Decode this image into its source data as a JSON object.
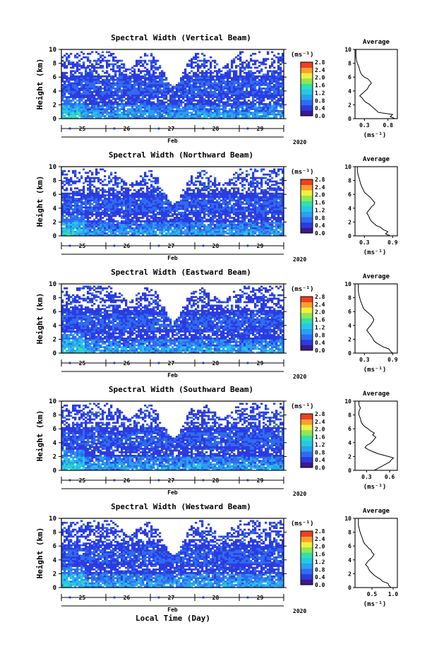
{
  "page": {
    "xlabel": "Local Time (Day)"
  },
  "panels": [
    {
      "title": "Spectral Width (Vertical Beam)",
      "avg_title": "Average",
      "avg_xticks": [
        "0.3",
        "0.8"
      ],
      "avg_xrange": [
        0.1,
        1.0
      ],
      "avg_profile": [
        [
          0,
          0.95
        ],
        [
          0.3,
          0.85
        ],
        [
          0.6,
          0.9
        ],
        [
          0.9,
          0.6
        ],
        [
          1.2,
          0.55
        ],
        [
          1.5,
          0.5
        ],
        [
          1.8,
          0.45
        ],
        [
          2.1,
          0.4
        ],
        [
          2.4,
          0.32
        ],
        [
          2.7,
          0.28
        ],
        [
          3,
          0.25
        ],
        [
          3.3,
          0.2
        ],
        [
          3.6,
          0.25
        ],
        [
          3.9,
          0.3
        ],
        [
          4.2,
          0.35
        ],
        [
          4.5,
          0.38
        ],
        [
          4.8,
          0.4
        ],
        [
          5.1,
          0.45
        ],
        [
          5.4,
          0.42
        ],
        [
          5.7,
          0.38
        ],
        [
          6,
          0.3
        ],
        [
          6.3,
          0.25
        ],
        [
          6.6,
          0.22
        ],
        [
          7,
          0.2
        ],
        [
          7.5,
          0.18
        ],
        [
          8,
          0.15
        ],
        [
          8.5,
          0.13
        ],
        [
          9,
          0.12
        ],
        [
          9.5,
          0.12
        ],
        [
          10,
          0.12
        ]
      ]
    },
    {
      "title": "Spectral Width (Northward Beam)",
      "avg_title": "Average",
      "avg_xticks": [
        "0.3",
        "0.9"
      ],
      "avg_xrange": [
        0.1,
        1.0
      ],
      "avg_profile": [
        [
          0,
          0.85
        ],
        [
          0.3,
          0.75
        ],
        [
          0.6,
          0.8
        ],
        [
          0.9,
          0.7
        ],
        [
          1.2,
          0.65
        ],
        [
          1.5,
          0.55
        ],
        [
          1.8,
          0.5
        ],
        [
          2.1,
          0.45
        ],
        [
          2.4,
          0.42
        ],
        [
          2.7,
          0.4
        ],
        [
          3,
          0.38
        ],
        [
          3.3,
          0.35
        ],
        [
          3.6,
          0.38
        ],
        [
          3.9,
          0.42
        ],
        [
          4.2,
          0.45
        ],
        [
          4.5,
          0.5
        ],
        [
          4.8,
          0.52
        ],
        [
          5.1,
          0.48
        ],
        [
          5.4,
          0.45
        ],
        [
          5.7,
          0.4
        ],
        [
          6,
          0.35
        ],
        [
          6.3,
          0.3
        ],
        [
          6.6,
          0.28
        ],
        [
          7,
          0.25
        ],
        [
          7.5,
          0.22
        ],
        [
          8,
          0.2
        ],
        [
          8.5,
          0.18
        ],
        [
          9,
          0.16
        ],
        [
          9.5,
          0.15
        ],
        [
          10,
          0.15
        ]
      ]
    },
    {
      "title": "Spectral Width (Eastward Beam)",
      "avg_title": "Average",
      "avg_xticks": [
        "0.3",
        "0.9"
      ],
      "avg_xrange": [
        0.1,
        1.0
      ],
      "avg_profile": [
        [
          0,
          0.9
        ],
        [
          0.3,
          0.85
        ],
        [
          0.6,
          0.82
        ],
        [
          0.9,
          0.7
        ],
        [
          1.2,
          0.62
        ],
        [
          1.5,
          0.55
        ],
        [
          1.8,
          0.5
        ],
        [
          2.1,
          0.48
        ],
        [
          2.4,
          0.45
        ],
        [
          2.7,
          0.42
        ],
        [
          3,
          0.38
        ],
        [
          3.3,
          0.35
        ],
        [
          3.6,
          0.38
        ],
        [
          3.9,
          0.42
        ],
        [
          4.2,
          0.45
        ],
        [
          4.5,
          0.48
        ],
        [
          4.8,
          0.5
        ],
        [
          5.1,
          0.48
        ],
        [
          5.4,
          0.45
        ],
        [
          5.7,
          0.4
        ],
        [
          6,
          0.35
        ],
        [
          6.3,
          0.3
        ],
        [
          6.6,
          0.27
        ],
        [
          7,
          0.25
        ],
        [
          7.5,
          0.22
        ],
        [
          8,
          0.2
        ],
        [
          8.5,
          0.18
        ],
        [
          9,
          0.17
        ],
        [
          9.5,
          0.17
        ],
        [
          10,
          0.17
        ]
      ]
    },
    {
      "title": "Spectral Width (Southward Beam)",
      "avg_title": "Average",
      "avg_xticks": [
        "0.3",
        "0.6"
      ],
      "avg_xrange": [
        0.15,
        0.7
      ],
      "avg_profile": [
        [
          0,
          0.4
        ],
        [
          0.3,
          0.45
        ],
        [
          0.6,
          0.5
        ],
        [
          0.9,
          0.55
        ],
        [
          1.2,
          0.6
        ],
        [
          1.5,
          0.62
        ],
        [
          1.8,
          0.65
        ],
        [
          2.1,
          0.55
        ],
        [
          2.4,
          0.45
        ],
        [
          2.7,
          0.38
        ],
        [
          3,
          0.32
        ],
        [
          3.3,
          0.28
        ],
        [
          3.6,
          0.3
        ],
        [
          3.9,
          0.35
        ],
        [
          4.2,
          0.38
        ],
        [
          4.5,
          0.4
        ],
        [
          4.8,
          0.42
        ],
        [
          5.1,
          0.38
        ],
        [
          5.4,
          0.4
        ],
        [
          5.7,
          0.35
        ],
        [
          6,
          0.32
        ],
        [
          6.3,
          0.28
        ],
        [
          6.6,
          0.25
        ],
        [
          7,
          0.23
        ],
        [
          7.5,
          0.22
        ],
        [
          8,
          0.2
        ],
        [
          8.5,
          0.2
        ],
        [
          9,
          0.22
        ],
        [
          9.5,
          0.2
        ],
        [
          10,
          0.2
        ]
      ]
    },
    {
      "title": "Spectral Width (Westward Beam)",
      "avg_title": "Average",
      "avg_xticks": [
        "0.5",
        "1.0"
      ],
      "avg_xrange": [
        0.1,
        1.1
      ],
      "avg_profile": [
        [
          0,
          0.95
        ],
        [
          0.3,
          0.9
        ],
        [
          0.6,
          0.88
        ],
        [
          0.9,
          0.75
        ],
        [
          1.2,
          0.7
        ],
        [
          1.5,
          0.62
        ],
        [
          1.8,
          0.55
        ],
        [
          2.1,
          0.5
        ],
        [
          2.4,
          0.45
        ],
        [
          2.7,
          0.42
        ],
        [
          3,
          0.4
        ],
        [
          3.3,
          0.35
        ],
        [
          3.6,
          0.38
        ],
        [
          3.9,
          0.42
        ],
        [
          4.2,
          0.48
        ],
        [
          4.5,
          0.52
        ],
        [
          4.8,
          0.55
        ],
        [
          5.1,
          0.5
        ],
        [
          5.4,
          0.48
        ],
        [
          5.7,
          0.42
        ],
        [
          6,
          0.38
        ],
        [
          6.3,
          0.33
        ],
        [
          6.6,
          0.3
        ],
        [
          7,
          0.28
        ],
        [
          7.5,
          0.25
        ],
        [
          8,
          0.22
        ],
        [
          8.5,
          0.2
        ],
        [
          9,
          0.18
        ],
        [
          9.5,
          0.18
        ],
        [
          10,
          0.18
        ]
      ]
    }
  ],
  "shared": {
    "ylabel": "Height (km)",
    "yticks": [
      "0",
      "2",
      "4",
      "6",
      "8",
      "10"
    ],
    "day_labels": [
      "25",
      "26",
      "27",
      "28",
      "29"
    ],
    "month_label": "Feb",
    "year_label": "2020",
    "cbar_unit": "(ms⁻¹)",
    "cbar_ticks": [
      "0.0",
      "0.4",
      "0.8",
      "1.2",
      "1.6",
      "2.0",
      "2.4",
      "2.8"
    ],
    "avg_unit": "(ms⁻¹)",
    "avg_yticks": [
      "0",
      "2",
      "4",
      "6",
      "8",
      "10"
    ]
  },
  "colors": {
    "scale": [
      "#3a1a8c",
      "#2b3be0",
      "#2f6cf0",
      "#2aa0f0",
      "#25c8e6",
      "#30e0b0",
      "#90e850",
      "#f0f040",
      "#f8a030",
      "#f04020"
    ]
  },
  "chart_data": [
    {
      "type": "heatmap",
      "title": "Spectral Width (Vertical Beam)",
      "xlabel": "Local Time (Day)",
      "ylabel": "Height (km)",
      "x_categories": [
        "25",
        "26",
        "27",
        "28",
        "29"
      ],
      "ylim": [
        0,
        10
      ],
      "colorbar_range": [
        0.0,
        2.8
      ]
    },
    {
      "type": "heatmap",
      "title": "Spectral Width (Northward Beam)",
      "xlabel": "Local Time (Day)",
      "ylabel": "Height (km)",
      "x_categories": [
        "25",
        "26",
        "27",
        "28",
        "29"
      ],
      "ylim": [
        0,
        10
      ],
      "colorbar_range": [
        0.0,
        2.8
      ]
    },
    {
      "type": "heatmap",
      "title": "Spectral Width (Eastward Beam)",
      "xlabel": "Local Time (Day)",
      "ylabel": "Height (km)",
      "x_categories": [
        "25",
        "26",
        "27",
        "28",
        "29"
      ],
      "ylim": [
        0,
        10
      ],
      "colorbar_range": [
        0.0,
        2.8
      ]
    },
    {
      "type": "heatmap",
      "title": "Spectral Width (Southward Beam)",
      "xlabel": "Local Time (Day)",
      "ylabel": "Height (km)",
      "x_categories": [
        "25",
        "26",
        "27",
        "28",
        "29"
      ],
      "ylim": [
        0,
        10
      ],
      "colorbar_range": [
        0.0,
        2.8
      ]
    },
    {
      "type": "heatmap",
      "title": "Spectral Width (Westward Beam)",
      "xlabel": "Local Time (Day)",
      "ylabel": "Height (km)",
      "x_categories": [
        "25",
        "26",
        "27",
        "28",
        "29"
      ],
      "ylim": [
        0,
        10
      ],
      "colorbar_range": [
        0.0,
        2.8
      ]
    }
  ]
}
